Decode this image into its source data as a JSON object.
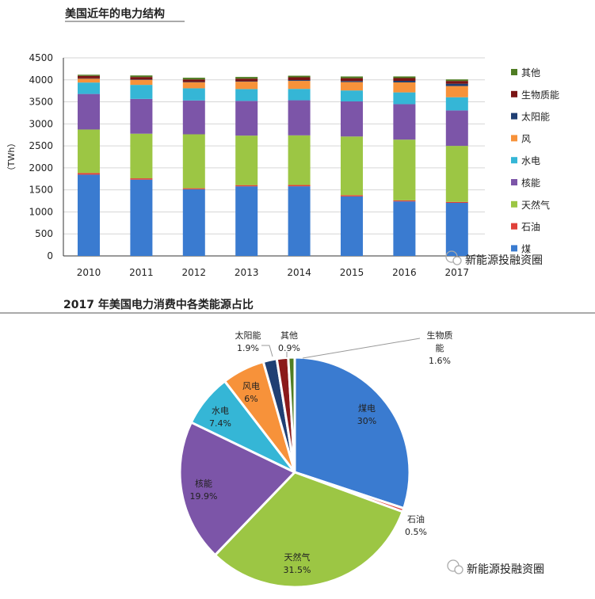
{
  "chart_data": [
    {
      "type": "bar",
      "stacked": true,
      "title": "美国近年的电力结构",
      "xlabel": "",
      "ylabel": "（TWh）",
      "ylim": [
        0,
        4500
      ],
      "yticks": [
        0,
        500,
        1000,
        1500,
        2000,
        2500,
        3000,
        3500,
        4000,
        4500
      ],
      "grid": true,
      "legend_position": "right",
      "categories": [
        "2010",
        "2011",
        "2012",
        "2013",
        "2014",
        "2015",
        "2016",
        "2017"
      ],
      "series": [
        {
          "name": "煤",
          "color": "#3a7bd0",
          "values": [
            1847,
            1733,
            1514,
            1581,
            1582,
            1352,
            1239,
            1206
          ]
        },
        {
          "name": "石油",
          "color": "#e0413a",
          "values": [
            37,
            30,
            23,
            27,
            30,
            28,
            24,
            21
          ]
        },
        {
          "name": "天然气",
          "color": "#9cc644",
          "values": [
            988,
            1014,
            1226,
            1125,
            1127,
            1333,
            1379,
            1273
          ]
        },
        {
          "name": "核能",
          "color": "#7c55a8",
          "values": [
            807,
            790,
            769,
            789,
            797,
            797,
            806,
            805
          ]
        },
        {
          "name": "水电",
          "color": "#35b6d6",
          "values": [
            260,
            319,
            276,
            269,
            259,
            249,
            267,
            300
          ]
        },
        {
          "name": "风",
          "color": "#f7923a",
          "values": [
            95,
            120,
            141,
            168,
            182,
            191,
            227,
            254
          ]
        },
        {
          "name": "太阳能",
          "color": "#1f3f73",
          "values": [
            1,
            2,
            4,
            9,
            18,
            25,
            36,
            53
          ]
        },
        {
          "name": "生物质能",
          "color": "#7a1414",
          "values": [
            56,
            57,
            57,
            60,
            64,
            64,
            63,
            63
          ]
        },
        {
          "name": "其他",
          "color": "#4f7d23",
          "values": [
            25,
            35,
            38,
            38,
            35,
            38,
            37,
            35
          ]
        }
      ]
    },
    {
      "type": "pie",
      "title": "2017 年美国电力消费中各类能源占比",
      "slices": [
        {
          "name": "煤电",
          "value": 30,
          "label": "30%",
          "color": "#3a7bd0"
        },
        {
          "name": "石油",
          "value": 0.5,
          "label": "0.5%",
          "color": "#e0413a"
        },
        {
          "name": "天然气",
          "value": 31.5,
          "label": "31.5%",
          "color": "#9cc644"
        },
        {
          "name": "核能",
          "value": 19.9,
          "label": "19.9%",
          "color": "#7c55a8"
        },
        {
          "name": "水电",
          "value": 7.4,
          "label": "7.4%",
          "color": "#35b6d6"
        },
        {
          "name": "风电",
          "value": 6,
          "label": "6%",
          "color": "#f7923a"
        },
        {
          "name": "太阳能",
          "value": 1.9,
          "label": "1.9%",
          "color": "#1f3f73"
        },
        {
          "name": "生物质能",
          "value": 1.6,
          "label": "1.6%",
          "color": "#8b1a1a"
        },
        {
          "name": "其他",
          "value": 0.9,
          "label": "0.9%",
          "color": "#4f7d23"
        }
      ]
    }
  ],
  "watermark": "新能源投融资圈"
}
